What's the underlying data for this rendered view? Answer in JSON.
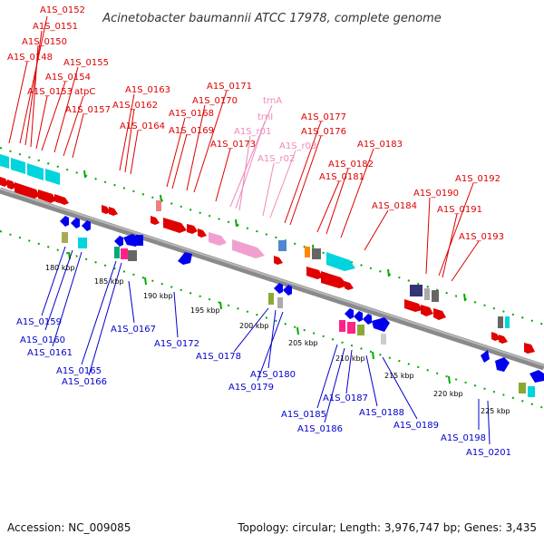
{
  "title": "Acinetobacter baumannii ATCC 17978, complete genome",
  "footer": {
    "accession": "Accession: NC_009085",
    "summary": "Topology: circular; Length: 3,976,747 bp; Genes: 3,435"
  },
  "colors": {
    "forward_label": "#dd0000",
    "reverse_label": "#0000cc",
    "rna_label": "#ee88bb",
    "backbone": "#888888",
    "tick": "#00aa00"
  },
  "kbp_labels": [
    "180 kbp",
    "185 kbp",
    "190 kbp",
    "195 kbp",
    "200 kbp",
    "205 kbp",
    "210 kbp",
    "215 kbp",
    "220 kbp",
    "225 kbp"
  ],
  "labels": {
    "top": [
      "A1S_0152",
      "A1S_0151",
      "A1S_0150",
      "A1S_0148",
      "A1S_0155",
      "A1S_0154",
      "A1S_0153",
      "atpC",
      "A1S_0157",
      "A1S_0163",
      "A1S_0162",
      "A1S_0164",
      "A1S_0171",
      "A1S_0170",
      "A1S_0168",
      "A1S_0169",
      "A1S_0173",
      "A1S_0177",
      "A1S_0176",
      "A1S_0183",
      "A1S_0182",
      "A1S_0181",
      "A1S_0184",
      "A1S_0192",
      "A1S_0190",
      "A1S_0191",
      "A1S_0193"
    ],
    "rna": [
      "trnA",
      "trnI",
      "A1S_r01",
      "A1S_r03",
      "A1S_r02"
    ],
    "bottom": [
      "A1S_0159",
      "A1S_0160",
      "A1S_0161",
      "A1S_0167",
      "A1S_0165",
      "A1S_0166",
      "A1S_0172",
      "A1S_0178",
      "A1S_0180",
      "A1S_0179",
      "A1S_0185",
      "A1S_0186",
      "A1S_0187",
      "A1S_0188",
      "A1S_0189",
      "A1S_0198",
      "A1S_0201"
    ]
  }
}
